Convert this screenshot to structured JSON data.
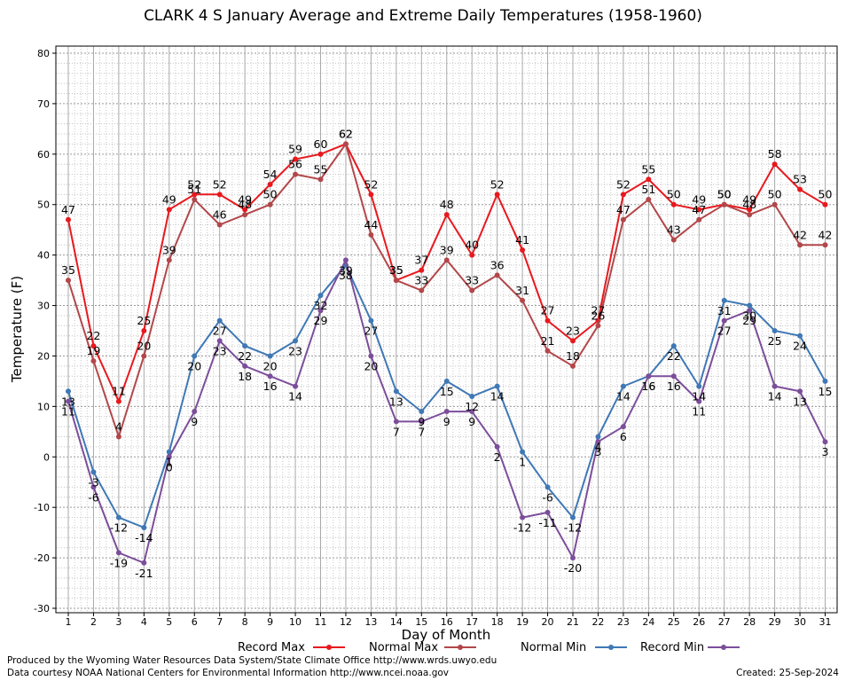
{
  "chart_data": {
    "type": "line",
    "title": "CLARK 4 S January Average and Extreme Daily Temperatures (1958-1960)",
    "xlabel": "Day of Month",
    "ylabel": "Temperature (F)",
    "ylim": [
      -30,
      80
    ],
    "ytick_step": 10,
    "grid": true,
    "legend_position": "bottom",
    "categories": [
      "1",
      "2",
      "3",
      "4",
      "5",
      "6",
      "7",
      "8",
      "9",
      "10",
      "11",
      "12",
      "13",
      "14",
      "15",
      "16",
      "17",
      "18",
      "19",
      "20",
      "21",
      "22",
      "23",
      "24",
      "25",
      "26",
      "27",
      "28",
      "29",
      "30",
      "31"
    ],
    "series": [
      {
        "name": "Record Max",
        "color": "#e8191e",
        "values": [
          47,
          22,
          11,
          25,
          49,
          52,
          52,
          49,
          54,
          59,
          60,
          62,
          52,
          35,
          37,
          48,
          40,
          52,
          41,
          27,
          23,
          27,
          52,
          55,
          50,
          49,
          50,
          49,
          58,
          53,
          50
        ],
        "label_pos": "above"
      },
      {
        "name": "Normal Max",
        "color": "#b2474a",
        "values": [
          35,
          19,
          4,
          20,
          39,
          51,
          46,
          48,
          50,
          56,
          55,
          62,
          44,
          35,
          33,
          39,
          33,
          36,
          31,
          21,
          18,
          26,
          47,
          51,
          43,
          47,
          50,
          48,
          50,
          42,
          42
        ],
        "label_pos": "above"
      },
      {
        "name": "Normal Min",
        "color": "#3f78b5",
        "values": [
          13,
          -3,
          -12,
          -14,
          1,
          20,
          27,
          22,
          20,
          23,
          32,
          38,
          27,
          13,
          9,
          15,
          12,
          14,
          1,
          -6,
          -12,
          4,
          14,
          16,
          22,
          14,
          31,
          30,
          25,
          24,
          15
        ],
        "label_pos": "below"
      },
      {
        "name": "Record Min",
        "color": "#7c4e9a",
        "values": [
          11,
          -6,
          -19,
          -21,
          0,
          9,
          23,
          18,
          16,
          14,
          29,
          39,
          20,
          7,
          7,
          9,
          9,
          2,
          -12,
          -11,
          -20,
          3,
          6,
          16,
          16,
          11,
          27,
          29,
          14,
          13,
          3
        ],
        "label_pos": "below"
      }
    ]
  },
  "footer": {
    "credit_line1": "Produced by the Wyoming Water Resources Data System/State Climate Office http://www.wrds.uwyo.edu",
    "credit_line2": "Data courtesy NOAA National Centers for Environmental Information http://www.ncei.noaa.gov",
    "created": "Created:  25-Sep-2024"
  }
}
